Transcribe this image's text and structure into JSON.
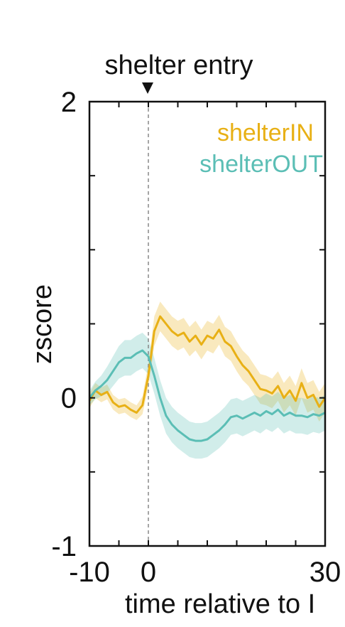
{
  "chart_data": {
    "type": "line",
    "annotation": "shelter entry",
    "xlabel": "time relative to I",
    "ylabel": "zscore",
    "xlim": [
      -10,
      30
    ],
    "ylim": [
      -1,
      2
    ],
    "xticks": [
      -10,
      0,
      30
    ],
    "yticks": [
      -1,
      0,
      2
    ],
    "event_x": 0,
    "grid": false,
    "legend_position": "top-right",
    "series": [
      {
        "name": "shelterIN",
        "color": "#E8B015",
        "x": [
          -10,
          -9,
          -8,
          -7,
          -6,
          -5,
          -4,
          -3,
          -2,
          -1,
          -0.5,
          0,
          0.5,
          1,
          2,
          3,
          4,
          5,
          6,
          7,
          8,
          9,
          10,
          11,
          12,
          13,
          14,
          15,
          16,
          17,
          18,
          19,
          20,
          21,
          22,
          23,
          24,
          25,
          26,
          27,
          28,
          29,
          30
        ],
        "y": [
          -0.02,
          0.05,
          0.02,
          0.04,
          -0.03,
          -0.06,
          -0.05,
          -0.08,
          -0.1,
          -0.05,
          0.05,
          0.15,
          0.3,
          0.45,
          0.55,
          0.5,
          0.45,
          0.42,
          0.44,
          0.38,
          0.42,
          0.36,
          0.42,
          0.4,
          0.46,
          0.38,
          0.35,
          0.28,
          0.22,
          0.18,
          0.12,
          0.06,
          0.05,
          0.03,
          0.08,
          0.0,
          0.05,
          -0.02,
          0.1,
          0.0,
          0.02,
          -0.06,
          0.0
        ],
        "band": [
          0.05,
          0.05,
          0.05,
          0.05,
          0.05,
          0.05,
          0.05,
          0.05,
          0.05,
          0.06,
          0.07,
          0.08,
          0.09,
          0.1,
          0.1,
          0.1,
          0.1,
          0.1,
          0.1,
          0.1,
          0.1,
          0.1,
          0.1,
          0.1,
          0.1,
          0.1,
          0.1,
          0.1,
          0.1,
          0.1,
          0.1,
          0.1,
          0.1,
          0.1,
          0.1,
          0.1,
          0.1,
          0.1,
          0.1,
          0.1,
          0.1,
          0.1,
          0.1
        ]
      },
      {
        "name": "shelterOUT",
        "color": "#5BBEB5",
        "x": [
          -10,
          -9,
          -8,
          -7,
          -6,
          -5,
          -4,
          -3,
          -2,
          -1,
          0,
          1,
          2,
          3,
          4,
          5,
          6,
          7,
          8,
          9,
          10,
          11,
          12,
          13,
          14,
          15,
          16,
          17,
          18,
          19,
          20,
          21,
          22,
          23,
          24,
          25,
          26,
          27,
          28,
          29,
          30
        ],
        "y": [
          0.0,
          0.05,
          0.08,
          0.12,
          0.18,
          0.24,
          0.27,
          0.27,
          0.3,
          0.32,
          0.28,
          0.15,
          0.0,
          -0.12,
          -0.18,
          -0.22,
          -0.25,
          -0.28,
          -0.29,
          -0.29,
          -0.28,
          -0.25,
          -0.22,
          -0.18,
          -0.13,
          -0.12,
          -0.14,
          -0.12,
          -0.1,
          -0.12,
          -0.09,
          -0.11,
          -0.08,
          -0.12,
          -0.1,
          -0.12,
          -0.12,
          -0.13,
          -0.11,
          -0.12,
          -0.1
        ],
        "band": [
          0.05,
          0.06,
          0.07,
          0.09,
          0.1,
          0.11,
          0.12,
          0.12,
          0.12,
          0.12,
          0.12,
          0.12,
          0.12,
          0.12,
          0.12,
          0.12,
          0.12,
          0.12,
          0.12,
          0.12,
          0.12,
          0.12,
          0.12,
          0.12,
          0.12,
          0.12,
          0.12,
          0.12,
          0.12,
          0.12,
          0.12,
          0.12,
          0.12,
          0.12,
          0.12,
          0.12,
          0.12,
          0.12,
          0.12,
          0.12,
          0.12
        ]
      }
    ]
  }
}
